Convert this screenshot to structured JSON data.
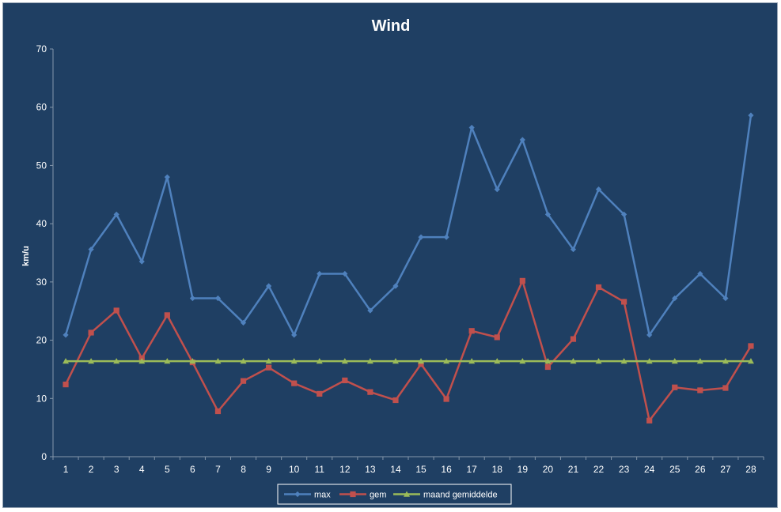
{
  "chart_data": {
    "type": "line",
    "title": "Wind",
    "xlabel": "",
    "ylabel": "km/u",
    "ylim": [
      0,
      70
    ],
    "yticks": [
      0,
      10,
      20,
      30,
      40,
      50,
      60,
      70
    ],
    "categories": [
      "1",
      "2",
      "3",
      "4",
      "5",
      "6",
      "7",
      "8",
      "9",
      "10",
      "11",
      "12",
      "13",
      "14",
      "15",
      "16",
      "17",
      "18",
      "19",
      "20",
      "21",
      "22",
      "23",
      "24",
      "25",
      "26",
      "27",
      "28"
    ],
    "grid": false,
    "legend_position": "bottom",
    "background_color": "#1f3f63",
    "series": [
      {
        "name": "max",
        "color": "#4f81bd",
        "marker": "diamond",
        "values": [
          20.9,
          35.6,
          41.6,
          33.5,
          48.0,
          27.2,
          27.2,
          23.0,
          29.3,
          20.9,
          31.4,
          31.4,
          25.1,
          29.3,
          37.7,
          37.7,
          56.5,
          45.9,
          54.4,
          41.6,
          35.6,
          45.9,
          41.6,
          20.9,
          27.2,
          31.4,
          27.2,
          58.6
        ]
      },
      {
        "name": "gem",
        "color": "#c0504d",
        "marker": "square",
        "values": [
          12.4,
          21.3,
          25.1,
          16.9,
          24.3,
          16.2,
          7.8,
          13.0,
          15.3,
          12.6,
          10.8,
          13.1,
          11.1,
          9.7,
          15.9,
          9.9,
          21.6,
          20.5,
          30.2,
          15.4,
          20.2,
          29.1,
          26.6,
          6.2,
          11.9,
          11.4,
          11.8,
          19.0
        ]
      },
      {
        "name": "maand gemiddelde",
        "color": "#9bbb59",
        "marker": "triangle",
        "values": [
          16.4,
          16.4,
          16.4,
          16.4,
          16.4,
          16.4,
          16.4,
          16.4,
          16.4,
          16.4,
          16.4,
          16.4,
          16.4,
          16.4,
          16.4,
          16.4,
          16.4,
          16.4,
          16.4,
          16.4,
          16.4,
          16.4,
          16.4,
          16.4,
          16.4,
          16.4,
          16.4,
          16.4
        ]
      }
    ]
  }
}
